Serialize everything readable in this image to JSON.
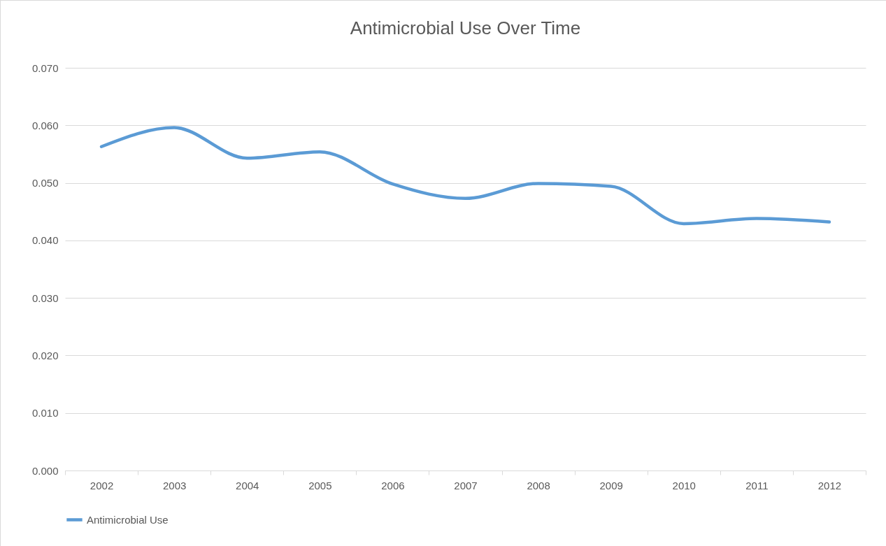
{
  "chart_data": {
    "type": "line",
    "title": "Antimicrobial Use Over Time",
    "categories": [
      "2002",
      "2003",
      "2004",
      "2005",
      "2006",
      "2007",
      "2008",
      "2009",
      "2010",
      "2011",
      "2012"
    ],
    "series": [
      {
        "name": "Antimicrobial Use",
        "color": "#5b9bd5",
        "values": [
          0.0563,
          0.0596,
          0.0543,
          0.0554,
          0.0498,
          0.0473,
          0.0499,
          0.0494,
          0.0429,
          0.0438,
          0.0432
        ]
      }
    ],
    "ylim": [
      0,
      0.07
    ],
    "yticks": [
      {
        "value": 0,
        "label": "0.000"
      },
      {
        "value": 0.01,
        "label": "0.010"
      },
      {
        "value": 0.02,
        "label": "0.020"
      },
      {
        "value": 0.03,
        "label": "0.030"
      },
      {
        "value": 0.04,
        "label": "0.040"
      },
      {
        "value": 0.05,
        "label": "0.050"
      },
      {
        "value": 0.06,
        "label": "0.060"
      },
      {
        "value": 0.07,
        "label": "0.070"
      }
    ],
    "grid": "y",
    "legend": "bottom",
    "marker": "none",
    "line_style": "solid"
  }
}
